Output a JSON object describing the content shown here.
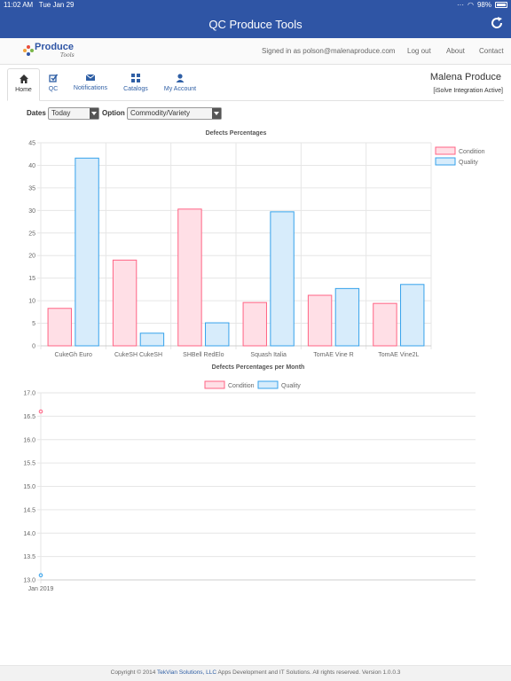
{
  "status_bar": {
    "time": "11:02 AM",
    "date": "Tue Jan 29",
    "battery": "98%"
  },
  "app": {
    "title": "QC Produce Tools"
  },
  "header": {
    "logo_text": "Produce",
    "logo_sub": "Tools",
    "signed_in": "Signed in as polson@malenaproduce.com",
    "logout": "Log out",
    "about": "About",
    "contact": "Contact"
  },
  "nav": {
    "items": [
      {
        "label": "Home",
        "icon": "home-icon"
      },
      {
        "label": "QC",
        "icon": "check-icon"
      },
      {
        "label": "Notifications",
        "icon": "envelope-icon"
      },
      {
        "label": "Catalogs",
        "icon": "grid-icon"
      },
      {
        "label": "My Account",
        "icon": "user-icon"
      }
    ],
    "company": "Malena Produce",
    "integration": "[iSolve Integration Active]"
  },
  "filters": {
    "dates_label": "Dates",
    "dates_value": "Today",
    "option_label": "Option",
    "option_value": "Commodity/Variety"
  },
  "colors": {
    "brand": "#2f55a5",
    "condition_fill": "#ffdfe6",
    "condition_stroke": "#ff6384",
    "quality_fill": "#d7ecfb",
    "quality_stroke": "#36a2eb"
  },
  "chart_data": [
    {
      "type": "bar",
      "title": "Defects Percentages",
      "categories": [
        "CukeGh Euro",
        "CukeSH CukeSH",
        "SHBell RedElo",
        "Squash Italia",
        "TomAE Vine R",
        "TomAE Vine2L"
      ],
      "series": [
        {
          "name": "Condition",
          "values": [
            8.3,
            19.0,
            30.3,
            9.6,
            11.2,
            9.4
          ]
        },
        {
          "name": "Quality",
          "values": [
            41.6,
            2.8,
            5.1,
            29.7,
            12.7,
            13.6
          ]
        }
      ],
      "ylim": [
        0,
        45
      ],
      "yticks": [
        0,
        5,
        10,
        15,
        20,
        25,
        30,
        35,
        40,
        45
      ],
      "legend": "top-right",
      "grid": true
    },
    {
      "type": "line",
      "title": "Defects Percentages per Month",
      "x": [
        "Jan 2019"
      ],
      "series": [
        {
          "name": "Condition",
          "values": [
            16.6
          ]
        },
        {
          "name": "Quality",
          "values": [
            13.1
          ]
        }
      ],
      "ylim": [
        13.0,
        17.0
      ],
      "yticks": [
        "13.0",
        "13.5",
        "14.0",
        "14.5",
        "15.0",
        "15.5",
        "16.0",
        "16.5",
        "17.0"
      ],
      "legend": "top",
      "grid": true
    }
  ],
  "footer": {
    "prefix": "Copyright © 2014 ",
    "company_link": "TekVian Solutions, LLC",
    "suffix": " Apps Development and IT Solutions. All rights reserved. Version 1.0.0.3"
  }
}
